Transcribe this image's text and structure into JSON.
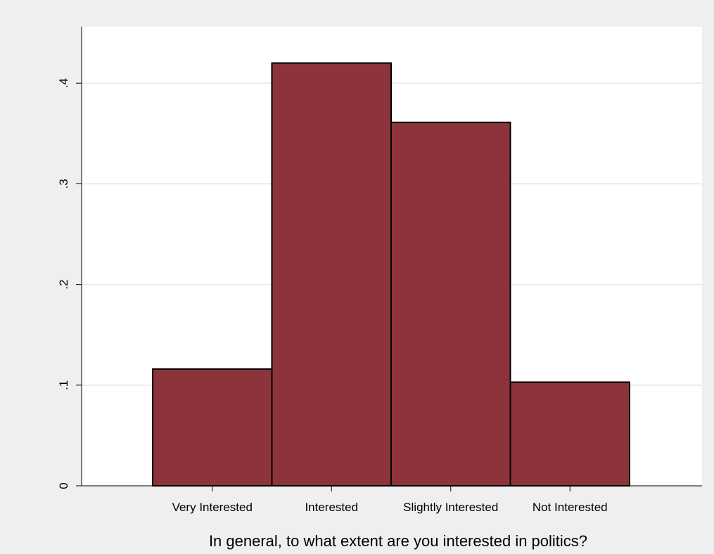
{
  "chart_data": {
    "type": "bar",
    "title": "",
    "xlabel": "In general, to what extent are you interested in politics?",
    "ylabel": "",
    "categories": [
      "Very Interested",
      "Interested",
      "Slightly Interested",
      "Not Interested"
    ],
    "values": [
      0.116,
      0.42,
      0.361,
      0.103
    ],
    "yticks": [
      0,
      0.1,
      0.2,
      0.3,
      0.4
    ],
    "ytick_labels": [
      "0",
      ".1",
      ".2",
      ".3",
      ".4"
    ],
    "ylim": [
      0,
      0.44
    ],
    "grid": "horizontal",
    "legend": "none",
    "colors": {
      "bar_fill": "#8c333c",
      "bar_stroke": "#000000",
      "plot_background": "#ffffff",
      "outer_background": "#efefef",
      "grid": "#e6e6e6"
    }
  }
}
